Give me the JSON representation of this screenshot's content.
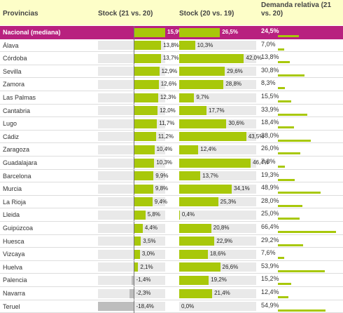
{
  "chart_data": {
    "type": "table",
    "columns": {
      "provincias": "Provincias",
      "stock_21_20": "Stock (21 vs. 20)",
      "stock_20_19": "Stock (20 vs. 19)",
      "demanda": "Demanda relativa (21 vs. 20)"
    },
    "stock_21_20_range": [
      -18.4,
      15.9
    ],
    "stock_20_19_range": [
      0,
      50
    ],
    "demanda_range": [
      0,
      70
    ],
    "colors": {
      "header_bg": "#fdfec8",
      "national_bg": "#b8217f",
      "bar": "#a8c80a",
      "negative_bar": "#bdbdbd",
      "track": "#e9e9e9"
    },
    "rows": [
      {
        "province": "Nacional (mediana)",
        "stock_21_20": 15.9,
        "stock_21_20_label": "15,9%",
        "stock_20_19": 26.5,
        "stock_20_19_label": "26,5%",
        "demanda": 24.5,
        "demanda_label": "24,5%",
        "highlight": true
      },
      {
        "province": "Álava",
        "stock_21_20": 13.8,
        "stock_21_20_label": "13,8%",
        "stock_20_19": 10.3,
        "stock_20_19_label": "10,3%",
        "demanda": 7.0,
        "demanda_label": "7,0%"
      },
      {
        "province": "Córdoba",
        "stock_21_20": 13.7,
        "stock_21_20_label": "13,7%",
        "stock_20_19": 42.0,
        "stock_20_19_label": "42,0%",
        "demanda": 13.8,
        "demanda_label": "13,8%"
      },
      {
        "province": "Sevilla",
        "stock_21_20": 12.9,
        "stock_21_20_label": "12,9%",
        "stock_20_19": 29.6,
        "stock_20_19_label": "29,6%",
        "demanda": 30.8,
        "demanda_label": "30,8%"
      },
      {
        "province": "Zamora",
        "stock_21_20": 12.6,
        "stock_21_20_label": "12,6%",
        "stock_20_19": 28.8,
        "stock_20_19_label": "28,8%",
        "demanda": 8.3,
        "demanda_label": "8,3%"
      },
      {
        "province": "Las Palmas",
        "stock_21_20": 12.3,
        "stock_21_20_label": "12,3%",
        "stock_20_19": 9.7,
        "stock_20_19_label": "9,7%",
        "demanda": 15.5,
        "demanda_label": "15,5%"
      },
      {
        "province": "Cantabria",
        "stock_21_20": 12.0,
        "stock_21_20_label": "12,0%",
        "stock_20_19": 17.7,
        "stock_20_19_label": "17,7%",
        "demanda": 33.9,
        "demanda_label": "33,9%"
      },
      {
        "province": "Lugo",
        "stock_21_20": 11.7,
        "stock_21_20_label": "11,7%",
        "stock_20_19": 30.6,
        "stock_20_19_label": "30,6%",
        "demanda": 18.4,
        "demanda_label": "18,4%"
      },
      {
        "province": "Cádiz",
        "stock_21_20": 11.2,
        "stock_21_20_label": "11,2%",
        "stock_20_19": 43.5,
        "stock_20_19_label": "43,5%",
        "demanda": 38.0,
        "demanda_label": "38,0%"
      },
      {
        "province": "Zaragoza",
        "stock_21_20": 10.4,
        "stock_21_20_label": "10,4%",
        "stock_20_19": 12.4,
        "stock_20_19_label": "12,4%",
        "demanda": 26.0,
        "demanda_label": "26,0%"
      },
      {
        "province": "Guadalajara",
        "stock_21_20": 10.3,
        "stock_21_20_label": "10,3%",
        "stock_20_19": 46.4,
        "stock_20_19_label": "46,4%",
        "demanda": 7.8,
        "demanda_label": "7,8%"
      },
      {
        "province": "Barcelona",
        "stock_21_20": 9.9,
        "stock_21_20_label": "9,9%",
        "stock_20_19": 13.7,
        "stock_20_19_label": "13,7%",
        "demanda": 19.3,
        "demanda_label": "19,3%"
      },
      {
        "province": "Murcia",
        "stock_21_20": 9.8,
        "stock_21_20_label": "9,8%",
        "stock_20_19": 34.1,
        "stock_20_19_label": "34,1%",
        "demanda": 48.9,
        "demanda_label": "48,9%"
      },
      {
        "province": "La Rioja",
        "stock_21_20": 9.4,
        "stock_21_20_label": "9,4%",
        "stock_20_19": 25.3,
        "stock_20_19_label": "25,3%",
        "demanda": 28.0,
        "demanda_label": "28,0%"
      },
      {
        "province": "Lleida",
        "stock_21_20": 5.8,
        "stock_21_20_label": "5,8%",
        "stock_20_19": 0.4,
        "stock_20_19_label": "0,4%",
        "demanda": 25.0,
        "demanda_label": "25,0%"
      },
      {
        "province": "Guipúzcoa",
        "stock_21_20": 4.4,
        "stock_21_20_label": "4,4%",
        "stock_20_19": 20.8,
        "stock_20_19_label": "20,8%",
        "demanda": 66.4,
        "demanda_label": "66,4%"
      },
      {
        "province": "Huesca",
        "stock_21_20": 3.5,
        "stock_21_20_label": "3,5%",
        "stock_20_19": 22.9,
        "stock_20_19_label": "22,9%",
        "demanda": 29.2,
        "demanda_label": "29,2%"
      },
      {
        "province": "Vizcaya",
        "stock_21_20": 3.0,
        "stock_21_20_label": "3,0%",
        "stock_20_19": 18.6,
        "stock_20_19_label": "18,6%",
        "demanda": 7.6,
        "demanda_label": "7,6%"
      },
      {
        "province": "Huelva",
        "stock_21_20": 2.1,
        "stock_21_20_label": "2,1%",
        "stock_20_19": 26.6,
        "stock_20_19_label": "26,6%",
        "demanda": 53.9,
        "demanda_label": "53,9%"
      },
      {
        "province": "Palencia",
        "stock_21_20": -1.4,
        "stock_21_20_label": "-1,4%",
        "stock_20_19": 19.2,
        "stock_20_19_label": "19,2%",
        "demanda": 15.2,
        "demanda_label": "15,2%"
      },
      {
        "province": "Navarra",
        "stock_21_20": -2.3,
        "stock_21_20_label": "-2,3%",
        "stock_20_19": 21.4,
        "stock_20_19_label": "21,4%",
        "demanda": 12.4,
        "demanda_label": "12,4%"
      },
      {
        "province": "Teruel",
        "stock_21_20": -18.4,
        "stock_21_20_label": "-18,4%",
        "stock_20_19": 0.0,
        "stock_20_19_label": "0,0%",
        "demanda": 54.9,
        "demanda_label": "54,9%"
      }
    ]
  }
}
